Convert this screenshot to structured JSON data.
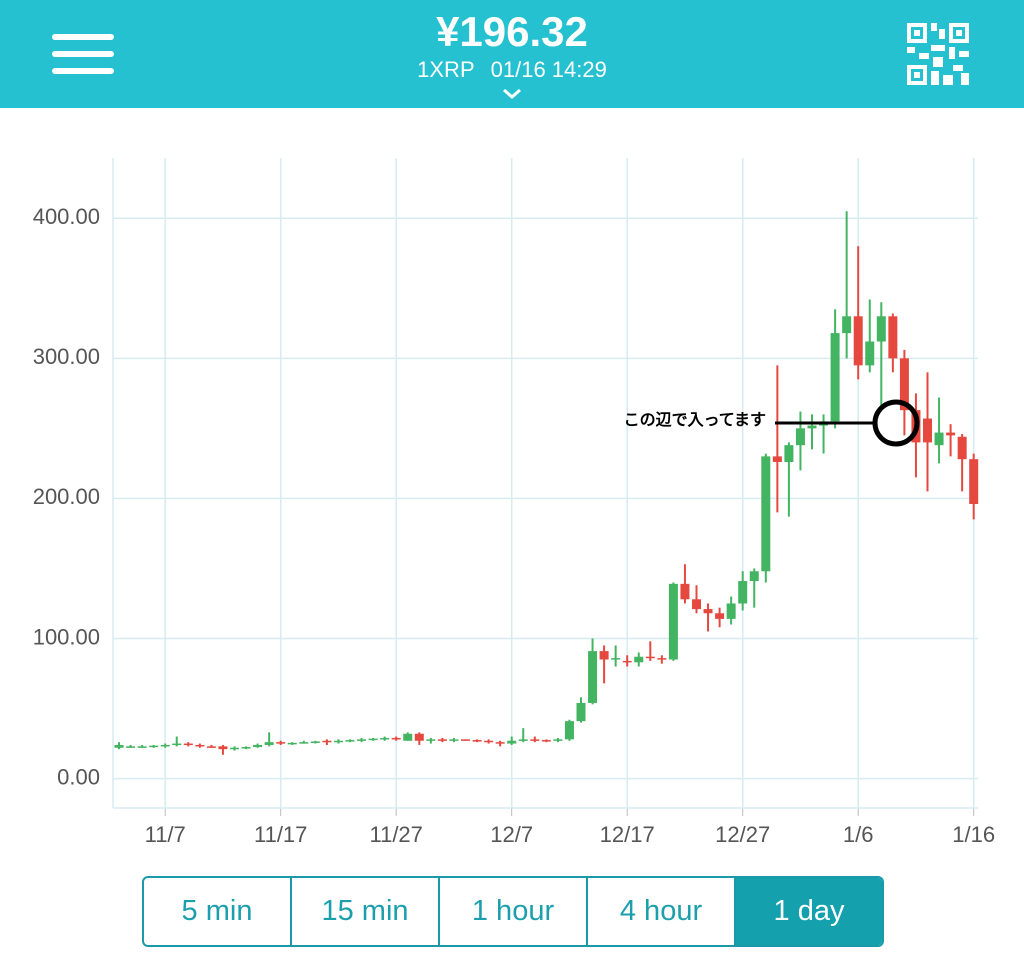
{
  "header": {
    "price": "¥196.32",
    "pair": "1XRP",
    "datetime": "01/16 14:29"
  },
  "chart_data": {
    "type": "candlestick",
    "annotation": "この辺で入ってます",
    "up_color": "#43b461",
    "down_color": "#e5483e",
    "grid": true,
    "categories": [
      null,
      null,
      null,
      null,
      "11/7",
      null,
      null,
      null,
      null,
      null,
      null,
      null,
      null,
      null,
      "11/17",
      null,
      null,
      null,
      null,
      null,
      null,
      null,
      null,
      null,
      "11/27",
      null,
      null,
      null,
      null,
      null,
      null,
      null,
      null,
      null,
      "12/7",
      null,
      null,
      null,
      null,
      null,
      null,
      null,
      null,
      null,
      "12/17",
      null,
      null,
      null,
      null,
      null,
      null,
      null,
      null,
      null,
      "12/27",
      null,
      null,
      null,
      null,
      null,
      null,
      null,
      null,
      null,
      "1/6",
      null,
      null,
      null,
      null,
      null,
      null,
      null,
      null,
      null,
      "1/16"
    ],
    "open": [
      22,
      23,
      23,
      23,
      23,
      24,
      25,
      24,
      23,
      23,
      21,
      22,
      22.5,
      24,
      26,
      25,
      25.5,
      26,
      27,
      26,
      27,
      27.5,
      28,
      28.5,
      29,
      27,
      32,
      27,
      28,
      27,
      28,
      27.5,
      27,
      26,
      25,
      27,
      28,
      27.5,
      27,
      28,
      41,
      54,
      91,
      85,
      84,
      83,
      87,
      86,
      85,
      139,
      128,
      121,
      118,
      114,
      125,
      141,
      148,
      230,
      226,
      238,
      250,
      252,
      255,
      318,
      330,
      295,
      312,
      330,
      300,
      263,
      257,
      238,
      247,
      244,
      228
    ],
    "high": [
      26,
      24,
      24,
      24,
      25,
      30,
      26,
      25,
      24,
      24,
      23,
      23,
      25,
      33,
      27,
      26,
      27,
      27,
      28,
      28,
      28,
      29,
      29,
      30,
      30,
      33,
      33,
      29,
      29,
      29,
      28,
      28,
      28,
      27,
      30,
      36,
      30,
      28,
      29,
      42,
      58,
      100,
      95,
      95,
      88,
      90,
      98,
      88,
      140,
      153,
      138,
      125,
      122,
      130,
      148,
      150,
      232,
      295,
      240,
      262,
      260,
      260,
      335,
      405,
      380,
      342,
      340,
      332,
      306,
      275,
      290,
      272,
      253,
      246,
      232
    ],
    "low": [
      21,
      22,
      22,
      22,
      22,
      23,
      23,
      22,
      22,
      17,
      20,
      21,
      22,
      23,
      24,
      24,
      25,
      25,
      24,
      25,
      26,
      26,
      27,
      27,
      27,
      27,
      24,
      25,
      26,
      26,
      27,
      26,
      25,
      23,
      24,
      26,
      26,
      26,
      26,
      27,
      40,
      53,
      68,
      80,
      80,
      80,
      84,
      82,
      84,
      125,
      118,
      105,
      108,
      110,
      120,
      122,
      140,
      190,
      187,
      220,
      235,
      232,
      250,
      300,
      285,
      290,
      265,
      290,
      245,
      215,
      205,
      225,
      230,
      205,
      185
    ],
    "close": [
      24,
      23,
      23,
      23.5,
      24,
      25,
      24,
      23,
      22.5,
      21,
      22,
      22.5,
      24,
      26,
      25,
      25.5,
      26,
      26.5,
      26,
      27,
      27.5,
      28,
      28.5,
      29,
      28,
      32,
      27,
      28,
      27,
      28,
      27.5,
      27,
      26,
      25,
      27,
      28,
      27.5,
      27,
      28,
      41,
      54,
      91,
      85,
      86,
      83,
      87,
      86,
      85,
      139,
      128,
      121,
      118,
      114,
      125,
      141,
      148,
      230,
      226,
      238,
      250,
      252,
      255,
      318,
      330,
      295,
      312,
      330,
      300,
      263,
      240,
      240,
      247,
      245,
      228,
      196
    ],
    "ylim": [
      -21,
      443
    ],
    "yticks": [
      {
        "value": 0,
        "label": "0.00"
      },
      {
        "value": 100,
        "label": "100.00"
      },
      {
        "value": 200,
        "label": "200.00"
      },
      {
        "value": 300,
        "label": "300.00"
      },
      {
        "value": 400,
        "label": "400.00"
      }
    ]
  },
  "intervals": {
    "options": [
      "5 min",
      "15 min",
      "1 hour",
      "4 hour",
      "1 day"
    ],
    "selected": 4
  }
}
